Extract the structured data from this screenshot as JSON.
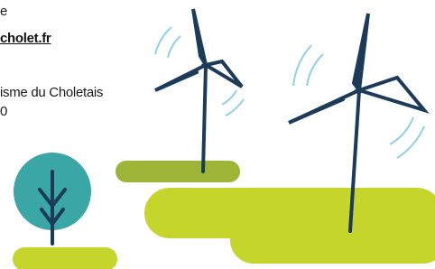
{
  "text": {
    "line1": "e",
    "link": "cholet.fr",
    "line3": "isme du Choletais",
    "line4": "0"
  }
}
